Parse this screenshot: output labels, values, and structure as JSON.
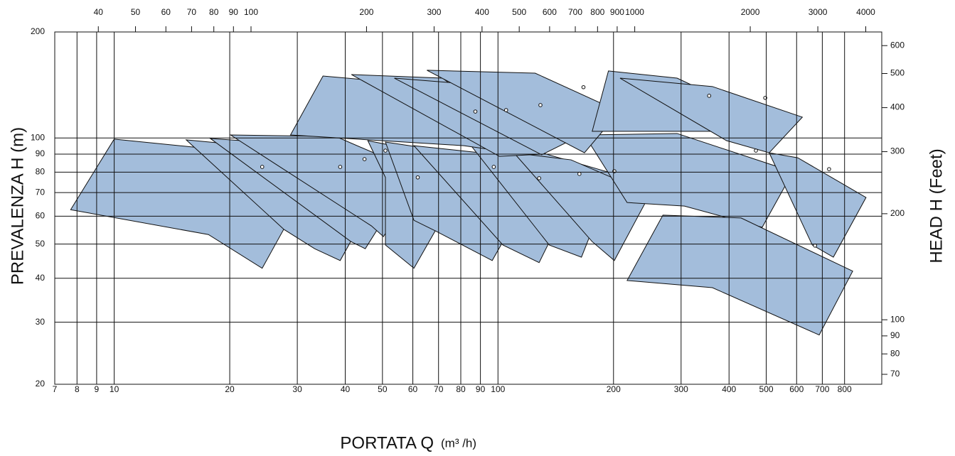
{
  "chart_data": {
    "type": "area",
    "ylabel": "PREVALENZA  H (m)",
    "y2label": "HEAD  H (Feet)",
    "xlabel": "PORTATA  Q",
    "xunit": "(m³ /h)",
    "xscale": "log",
    "yscale": "log",
    "grid": true,
    "color": "#a3bddb",
    "xlim": [
      7,
      1000
    ],
    "xticks": [
      7,
      8,
      9,
      10,
      20,
      30,
      40,
      50,
      60,
      70,
      80,
      90,
      100,
      200,
      300,
      400,
      500,
      600,
      700,
      800
    ],
    "ylim": [
      20,
      200
    ],
    "yticks": [
      20,
      30,
      40,
      50,
      60,
      70,
      80,
      90,
      100,
      200
    ],
    "x2lim": [
      30.8,
      4403
    ],
    "x2ticks": [
      40,
      50,
      60,
      70,
      80,
      90,
      100,
      200,
      300,
      400,
      500,
      600,
      700,
      800,
      900,
      1000,
      2000,
      3000,
      4000
    ],
    "y2lim": [
      65.6,
      656
    ],
    "y2ticks": [
      70,
      80,
      90,
      100,
      200,
      300,
      400,
      500,
      600
    ],
    "regions": [
      {
        "x": [
          10,
          16.8,
          30.6,
          24.3,
          17.6,
          7.7
        ],
        "y": [
          99.3,
          93.8,
          67.2,
          42.7,
          53.2,
          62.6
        ],
        "dot_x": 24.3,
        "dot_y": 82.8
      },
      {
        "x": [
          15.4,
          28.1,
          48.8,
          38.8,
          33.3,
          27.7
        ],
        "y": [
          98.8,
          92.9,
          70.4,
          44.9,
          48.5,
          55.0
        ],
        "dot_x": 38.8,
        "dot_y": 82.8
      },
      {
        "x": [
          17.8,
          33.3,
          56.2,
          45.1,
          41.4
        ],
        "y": [
          99.7,
          95.1,
          71.0,
          48.5,
          50.8
        ],
        "dot_x": 44.9,
        "dot_y": 87.1
      },
      {
        "x": [
          20.1,
          37.8,
          63.6,
          50.3,
          46.8
        ],
        "y": [
          102,
          101,
          79.1,
          52.5,
          56.3
        ],
        "dot_x": 50.9,
        "dot_y": 92.1
      },
      {
        "x": [
          45.8,
          65.9,
          77.1,
          60.4,
          50.9,
          50.9
        ],
        "y": [
          98.3,
          90.8,
          68.1,
          42.7,
          49.7,
          77.3
        ],
        "dot_x": 61.8,
        "dot_y": 77.3
      },
      {
        "x": [
          50.9,
          78.1,
          122,
          96.6,
          68.7,
          60.4
        ],
        "y": [
          97.4,
          90.8,
          70.4,
          44.9,
          54.5,
          58.4
        ],
        "dot_x": 97.5,
        "dot_y": 82.8
      },
      {
        "x": [
          60.4,
          100.9,
          158,
          128,
          103
        ],
        "y": [
          95.1,
          89.6,
          70.4,
          44.3,
          49.7
        ],
        "dot_x": 128,
        "dot_y": 76.9
      },
      {
        "x": [
          85.1,
          130,
          201,
          165,
          136
        ],
        "y": [
          95.1,
          90.8,
          79.1,
          45.9,
          49.7
        ],
        "dot_x": 163,
        "dot_y": 79.1
      },
      {
        "x": [
          110,
          155,
          249,
          201,
          176
        ],
        "y": [
          90.8,
          86.7,
          69.4,
          44.9,
          50.8
        ],
        "dot_x": 201,
        "dot_y": 80.5
      },
      {
        "x": [
          168,
          293,
          587,
          488,
          306,
          217
        ],
        "y": [
          102,
          103,
          80.2,
          55.8,
          64.1,
          65.6
        ],
        "dot_x": 470,
        "dot_y": 92.1
      },
      {
        "x": [
          509,
          604,
          910,
          748,
          659
        ],
        "y": [
          90.8,
          87.9,
          67.8,
          45.9,
          49.7
        ],
        "dot_x": 729,
        "dot_y": 81.6
      },
      {
        "x": [
          269,
          430,
          840,
          687,
          362,
          217
        ],
        "y": [
          60.4,
          59.3,
          41.9,
          27.6,
          37.6,
          39.4
        ],
        "dot_x": 670,
        "dot_y": 49.5
      },
      {
        "x": [
          28.8,
          35.0,
          65.9,
          110,
          81.5
        ],
        "y": [
          102,
          150,
          141,
          90.8,
          95.1
        ],
        "dot_x": 87.3,
        "dot_y": 118.9
      },
      {
        "x": [
          41.5,
          71.7,
          131,
          100.9
        ],
        "y": [
          151.4,
          147.9,
          90,
          88.7
        ],
        "dot_x": 105,
        "dot_y": 120
      },
      {
        "x": [
          53.7,
          92.7,
          162,
          130
        ],
        "y": [
          147.9,
          141,
          101,
          89.6
        ],
        "dot_x": 129,
        "dot_y": 124
      },
      {
        "x": [
          65.3,
          125,
          207,
          168
        ],
        "y": [
          155.7,
          152.8,
          118.9,
          90.8
        ],
        "dot_x": 167,
        "dot_y": 139.4
      },
      {
        "x": [
          194,
          293,
          448,
          394,
          176
        ],
        "y": [
          155,
          147.9,
          118.9,
          104.5,
          104.5
        ],
        "dot_x": 355,
        "dot_y": 131.8
      },
      {
        "x": [
          208,
          362,
          621,
          509,
          394
        ],
        "y": [
          147.9,
          140,
          114.6,
          90.8,
          98.3
        ],
        "dot_x": 497,
        "dot_y": 130
      }
    ]
  }
}
